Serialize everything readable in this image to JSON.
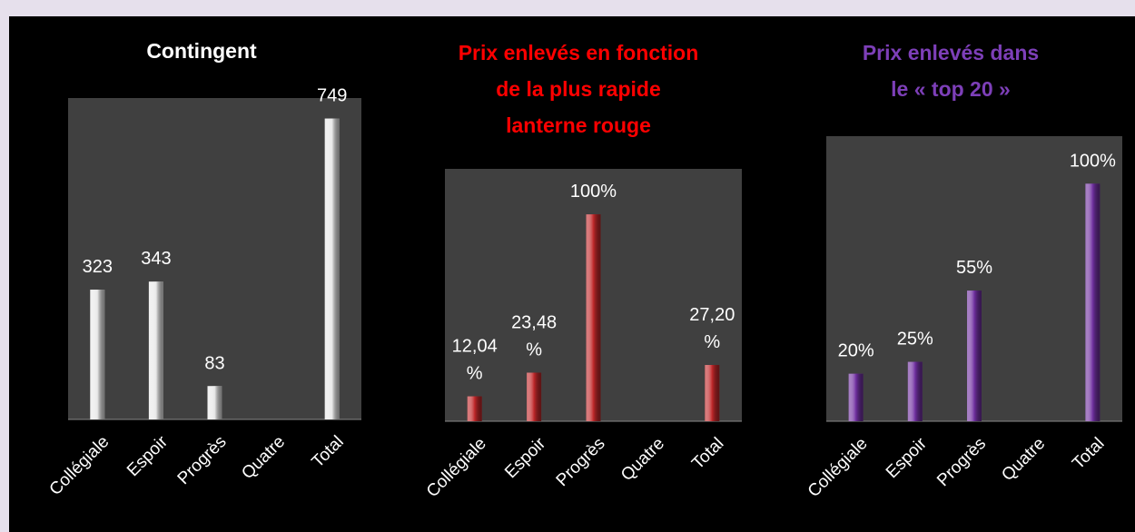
{
  "chart_data": [
    {
      "type": "bar",
      "title": [
        "Contingent"
      ],
      "title_color": "#ffffff",
      "categories": [
        "Collégiale",
        "Espoir",
        "Progrès",
        "Quatre",
        "Total"
      ],
      "values": [
        323,
        343,
        83,
        null,
        749
      ],
      "color": "#e8e8e8",
      "ylim": [
        0,
        800
      ]
    },
    {
      "type": "bar",
      "title": [
        "Prix enlevés en fonction",
        "de la plus rapide",
        "lanterne rouge"
      ],
      "title_color": "#ff0000",
      "categories": [
        "Collégiale",
        "Espoir",
        "Progrès",
        "Quatre",
        "Total"
      ],
      "values": [
        12.04,
        23.48,
        100,
        null,
        27.2
      ],
      "value_labels": [
        "12,04 %",
        "23,48 %",
        "100%",
        null,
        "27,20 %"
      ],
      "color": "#c0282a",
      "ylim": [
        0,
        122
      ]
    },
    {
      "type": "bar",
      "title": [
        "Prix enlevés dans",
        "le « top 20 »"
      ],
      "title_color": "#7d3fb8",
      "categories": [
        "Collégiale",
        "Espoir",
        "Progrès",
        "Quatre",
        "Total"
      ],
      "values": [
        20,
        25,
        55,
        null,
        100
      ],
      "value_labels": [
        "20%",
        "25%",
        "55%",
        null,
        "100%"
      ],
      "color": "#7030a0",
      "ylim": [
        0,
        120
      ]
    }
  ]
}
